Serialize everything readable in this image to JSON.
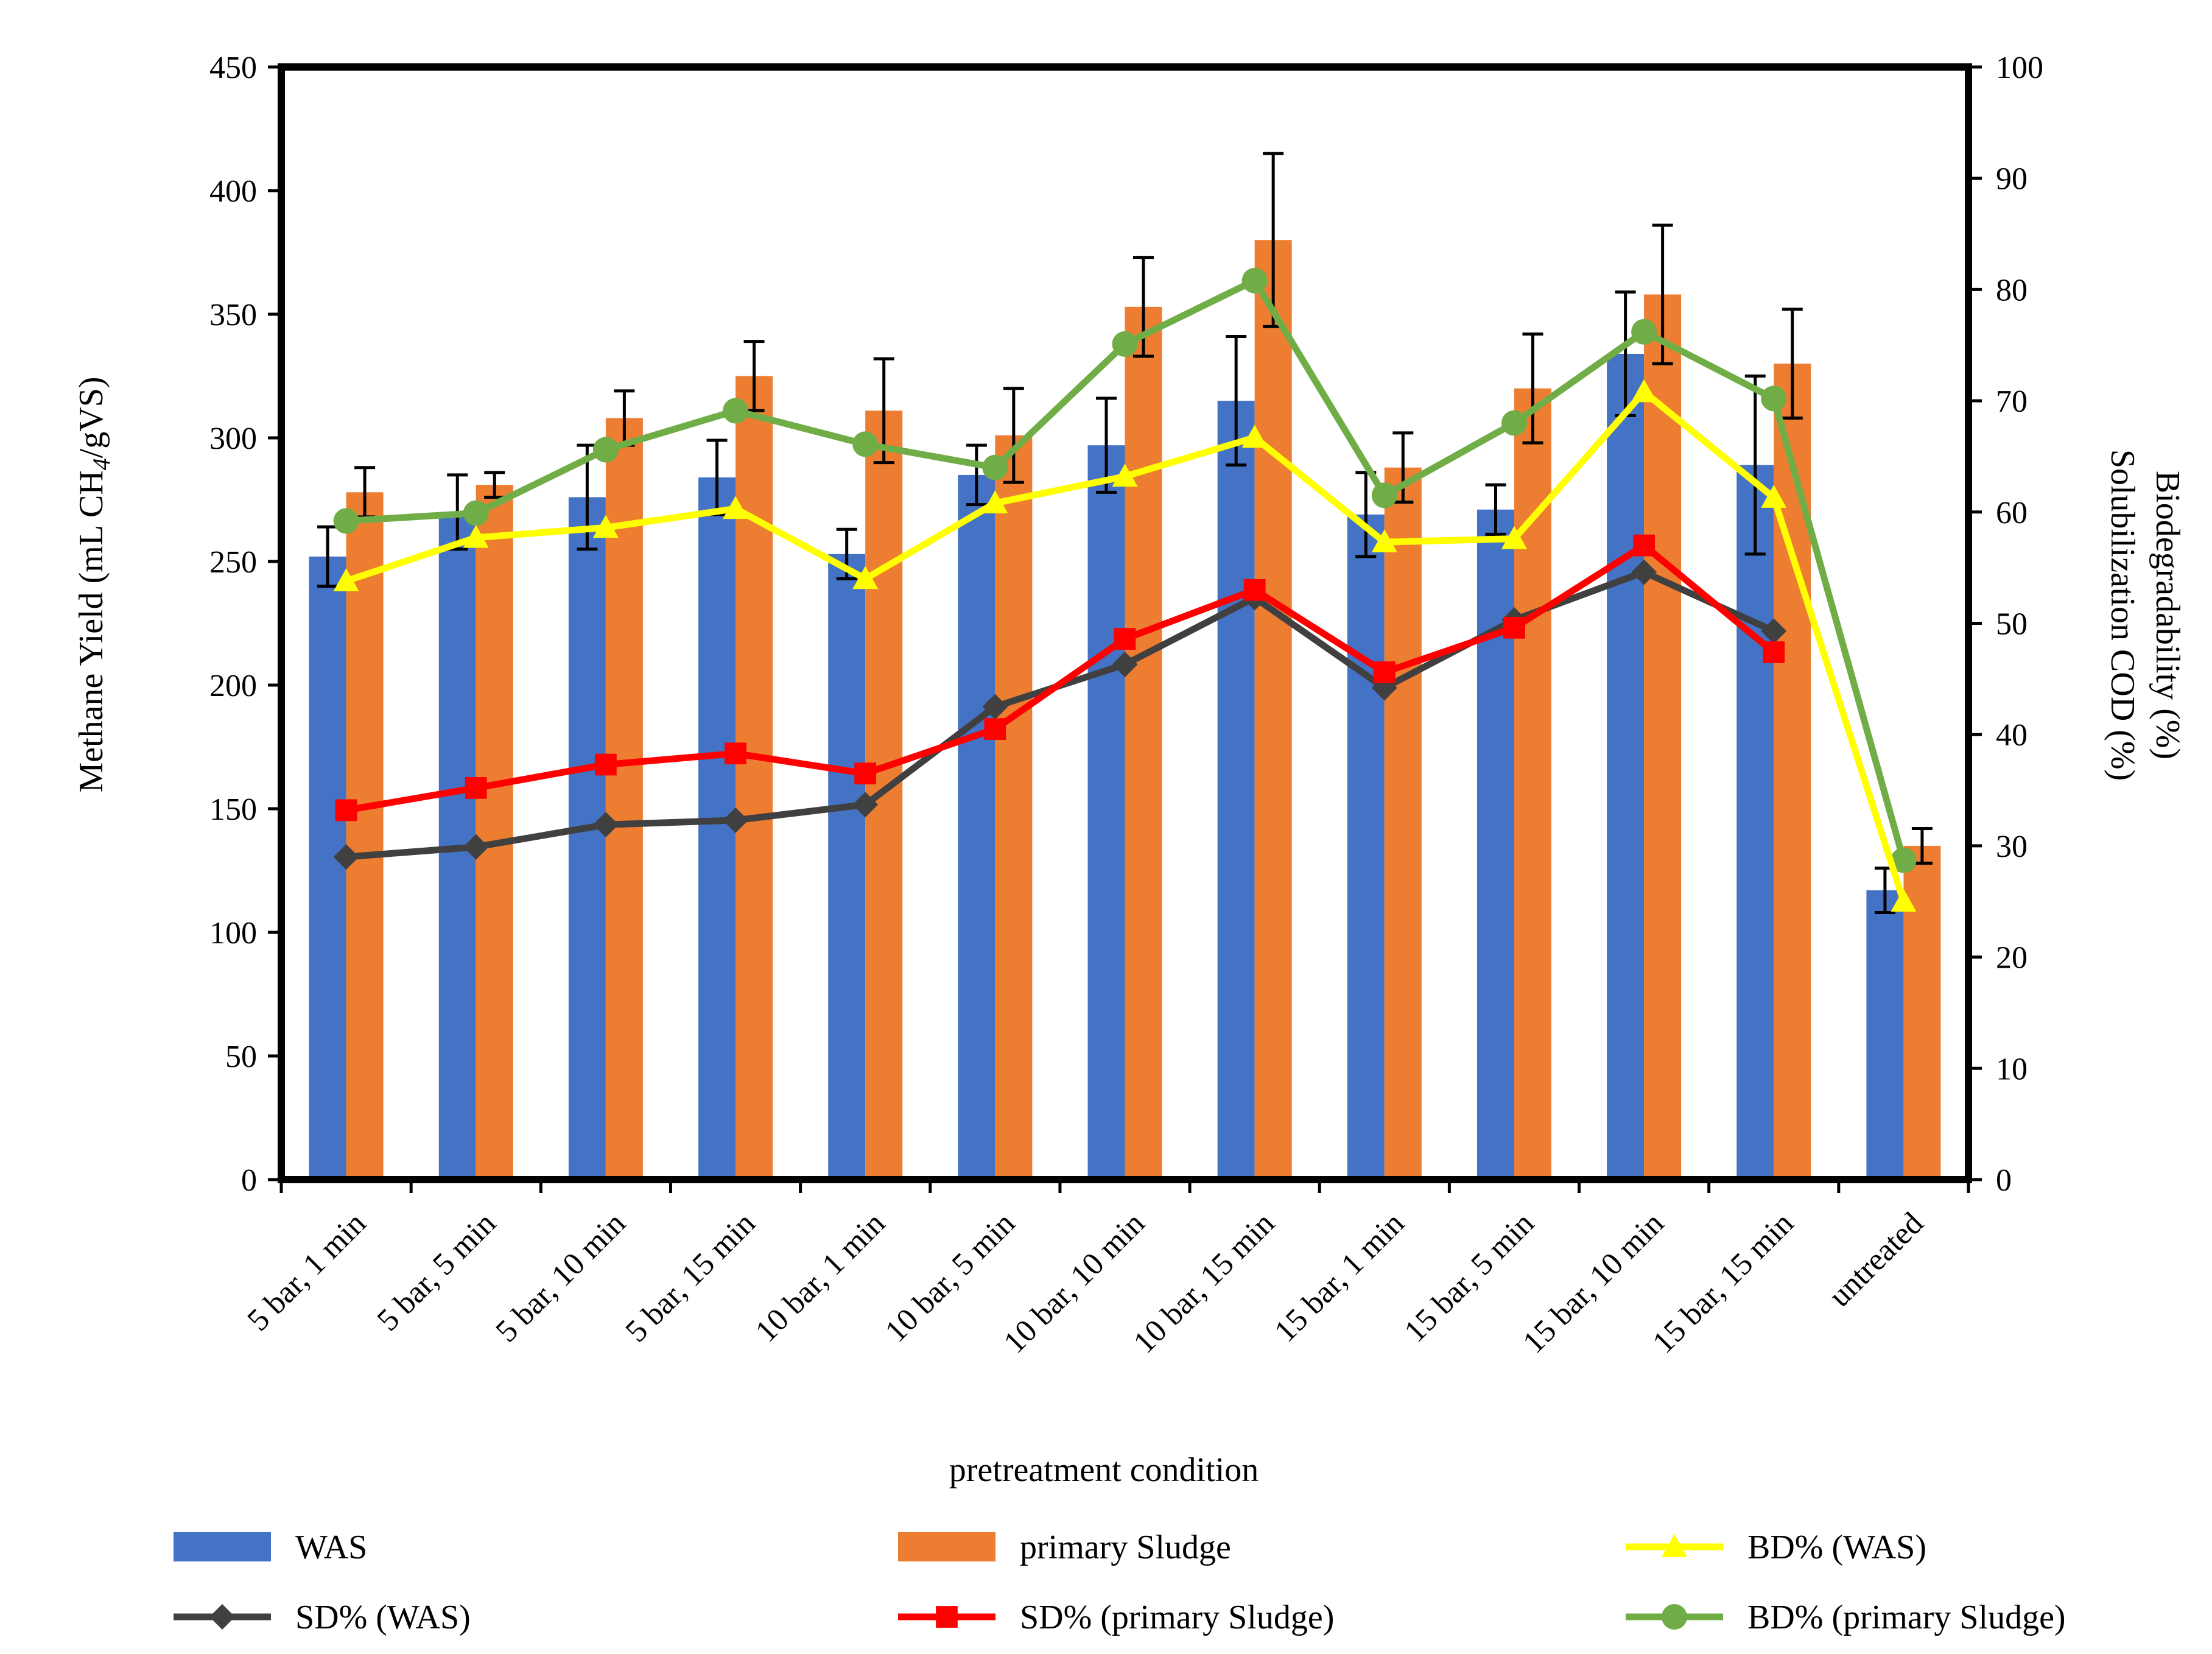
{
  "chart_data": {
    "type": "bar",
    "xlabel": "pretreatment condition",
    "ylabel_left": {
      "main": "Methane Yield (mL CH",
      "sub": "4",
      "tail": "/gVS)"
    },
    "ylabel_right": [
      "Biodegradability (%)",
      "Solubilization COD (%)"
    ],
    "ylim_left": [
      0,
      450
    ],
    "yticks_left": [
      0,
      50,
      100,
      150,
      200,
      250,
      300,
      350,
      400,
      450
    ],
    "ylim_right": [
      0,
      100
    ],
    "yticks_right": [
      0,
      10,
      20,
      30,
      40,
      50,
      60,
      70,
      80,
      90,
      100
    ],
    "grid": false,
    "legend_position": "bottom",
    "categories": [
      "5 bar, 1 min",
      "5 bar, 5 min",
      "5 bar, 10 min",
      "5 bar, 15 min",
      "10 bar, 1 min",
      "10 bar, 5 min",
      "10 bar, 10 min",
      "10 bar, 15 min",
      "15 bar, 1 min",
      "15 bar, 5 min",
      "15 bar, 10 min",
      "15 bar, 15 min",
      "untreated"
    ],
    "bar_series": [
      {
        "name": "WAS",
        "color": "#4472C4",
        "values": [
          252,
          270,
          276,
          284,
          253,
          285,
          297,
          315,
          269,
          271,
          334,
          289,
          117
        ],
        "errors": [
          12,
          15,
          21,
          15,
          10,
          12,
          19,
          26,
          17,
          10,
          25,
          36,
          9
        ]
      },
      {
        "name": "primary Sludge",
        "color": "#ED7D31",
        "values": [
          278,
          281,
          308,
          325,
          311,
          301,
          353,
          380,
          288,
          320,
          358,
          330,
          135
        ],
        "errors": [
          10,
          5,
          11,
          14,
          21,
          19,
          20,
          35,
          14,
          22,
          28,
          22,
          7
        ]
      }
    ],
    "line_series": [
      {
        "name": "BD% (WAS)",
        "color": "#FFFF00",
        "marker": "triangle",
        "values": [
          53.8,
          57.7,
          58.6,
          60.3,
          54.0,
          60.8,
          63.2,
          66.7,
          57.3,
          57.6,
          70.8,
          61.3,
          25.0
        ]
      },
      {
        "name": "SD% (WAS)",
        "color": "#404040",
        "marker": "diamond",
        "values": [
          29.0,
          29.9,
          31.9,
          32.3,
          33.7,
          42.5,
          46.3,
          52.3,
          44.2,
          50.3,
          54.6,
          49.3,
          null
        ]
      },
      {
        "name": "SD% (primary Sludge)",
        "color": "#FF0000",
        "marker": "square",
        "values": [
          33.2,
          35.2,
          37.3,
          38.3,
          36.5,
          40.5,
          48.6,
          53.0,
          45.6,
          49.6,
          57.0,
          47.4,
          null
        ]
      },
      {
        "name": "BD% (primary Sludge)",
        "color": "#70AD47",
        "marker": "circle",
        "values": [
          59.2,
          59.9,
          65.6,
          69.1,
          66.1,
          64.0,
          75.1,
          80.8,
          61.5,
          68.0,
          76.2,
          70.2,
          28.7
        ]
      }
    ],
    "legend": [
      {
        "label": "WAS",
        "kind": "bar",
        "color": "#4472C4"
      },
      {
        "label": "primary Sludge",
        "kind": "bar",
        "color": "#ED7D31"
      },
      {
        "label": "BD% (WAS)",
        "kind": "line",
        "color": "#FFFF00",
        "marker": "triangle"
      },
      {
        "label": "SD% (WAS)",
        "kind": "line",
        "color": "#404040",
        "marker": "diamond"
      },
      {
        "label": "SD% (primary Sludge)",
        "kind": "line",
        "color": "#FF0000",
        "marker": "square"
      },
      {
        "label": "BD% (primary Sludge)",
        "kind": "line",
        "color": "#70AD47",
        "marker": "circle"
      }
    ]
  }
}
